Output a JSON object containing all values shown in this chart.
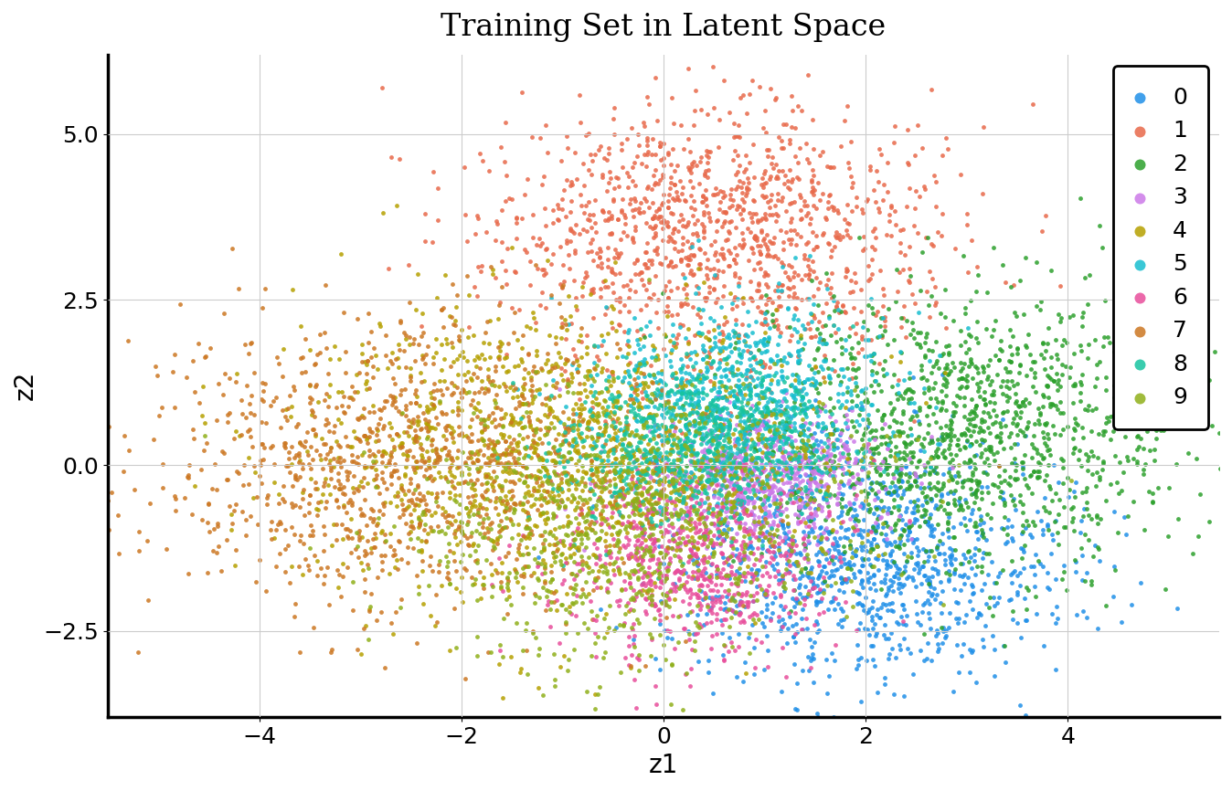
{
  "title": "Training Set in Latent Space",
  "xlabel": "z1",
  "ylabel": "z2",
  "xlim": [
    -5.5,
    5.5
  ],
  "ylim": [
    -3.8,
    6.2
  ],
  "xticks": [
    -4,
    -2,
    0,
    2,
    4
  ],
  "yticks": [
    -2.5,
    0.0,
    2.5,
    5.0
  ],
  "classes": [
    0,
    1,
    2,
    3,
    4,
    5,
    6,
    7,
    8,
    9
  ],
  "colors": [
    "#1f8fe8",
    "#e8694a",
    "#2ca02c",
    "#cc79e8",
    "#b5a000",
    "#17becf",
    "#e84d9b",
    "#cc7722",
    "#17c4a0",
    "#8faf1a"
  ],
  "cluster_centers": [
    [
      2.0,
      -1.5
    ],
    [
      0.5,
      3.5
    ],
    [
      3.0,
      0.5
    ],
    [
      1.0,
      -0.2
    ],
    [
      -1.0,
      0.2
    ],
    [
      0.8,
      1.0
    ],
    [
      0.3,
      -1.5
    ],
    [
      -2.5,
      0.0
    ],
    [
      0.3,
      0.3
    ],
    [
      -0.3,
      -0.8
    ]
  ],
  "cluster_stds_x": [
    1.0,
    1.1,
    1.1,
    0.55,
    1.3,
    0.75,
    0.65,
    1.3,
    0.65,
    1.1
  ],
  "cluster_stds_y": [
    0.9,
    1.0,
    1.0,
    0.5,
    1.1,
    0.7,
    0.65,
    1.1,
    0.6,
    1.0
  ],
  "n_points": [
    1100,
    1300,
    1400,
    700,
    1400,
    800,
    700,
    1200,
    800,
    1000
  ],
  "marker_size": 12,
  "alpha": 0.85,
  "grid": true,
  "grid_color": "#cccccc",
  "background_color": "#ffffff",
  "title_fontsize": 24,
  "label_fontsize": 20,
  "tick_fontsize": 18,
  "legend_fontsize": 18,
  "random_seed": 42
}
